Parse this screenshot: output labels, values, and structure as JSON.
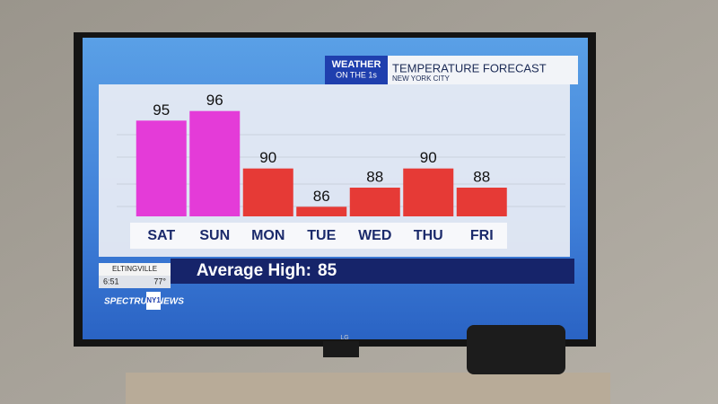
{
  "chart_data": {
    "type": "bar",
    "title": "TEMPERATURE FORECAST",
    "subtitle": "NEW YORK CITY",
    "brand": [
      "WEATHER",
      "ON THE 1s"
    ],
    "categories": [
      "SAT",
      "SUN",
      "MON",
      "TUE",
      "WED",
      "THU",
      "FRI"
    ],
    "values": [
      95,
      96,
      90,
      86,
      88,
      90,
      88
    ],
    "colors": [
      "#e43bd8",
      "#e43bd8",
      "#e63a36",
      "#e63a36",
      "#e63a36",
      "#e63a36",
      "#e63a36"
    ],
    "ylim": [
      85,
      97
    ],
    "average_label": "Average High:",
    "average_value": 85
  },
  "ticker": {
    "location": "ELTINGVILLE",
    "time": "6:51",
    "temperature": "77°",
    "channel": "SPECTRUM NEWS",
    "channel_number": "NY1"
  },
  "tv_brand": "LG"
}
